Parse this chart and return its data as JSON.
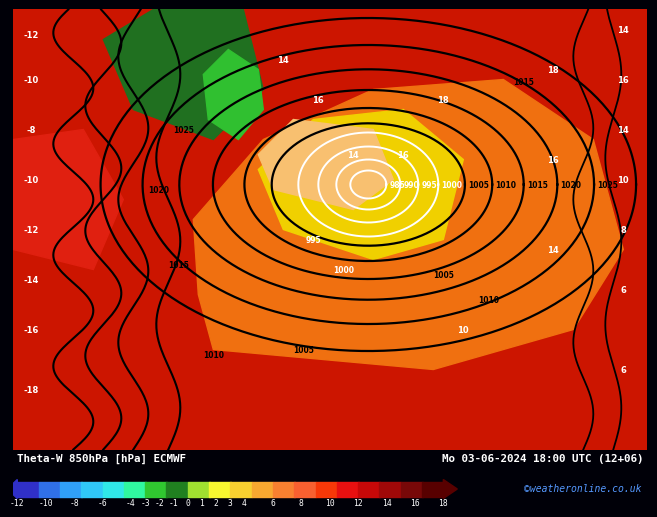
{
  "title_left": "Theta-W 850hPa [hPa] ECMWF",
  "title_right": "Mo 03-06-2024 18:00 UTC (12+06)",
  "credit": "©weatheronline.co.uk",
  "colorbar_ticks": [
    -12,
    -10,
    -8,
    -6,
    -4,
    -3,
    -2,
    -1,
    0,
    1,
    2,
    3,
    4,
    6,
    8,
    10,
    12,
    14,
    16,
    18
  ],
  "colorbar_colors": [
    "#3030c8",
    "#3070e8",
    "#30a0f8",
    "#30c8f8",
    "#30e8e8",
    "#30f8a0",
    "#30c830",
    "#208020",
    "#a0e030",
    "#f8f830",
    "#f8d030",
    "#f8a830",
    "#f88030",
    "#f86030",
    "#f83808",
    "#e81010",
    "#c80808",
    "#a00808",
    "#780808",
    "#580000"
  ],
  "bottom_bar_color": "#000008",
  "bottom_bar_height": 0.102,
  "fig_width": 6.34,
  "fig_height": 4.9,
  "map_dominant_color": "#cc1500",
  "map_orange_color": "#f07010",
  "map_yellow_color": "#f0d000",
  "map_green_dark": "#207020",
  "map_green_bright": "#30c030"
}
